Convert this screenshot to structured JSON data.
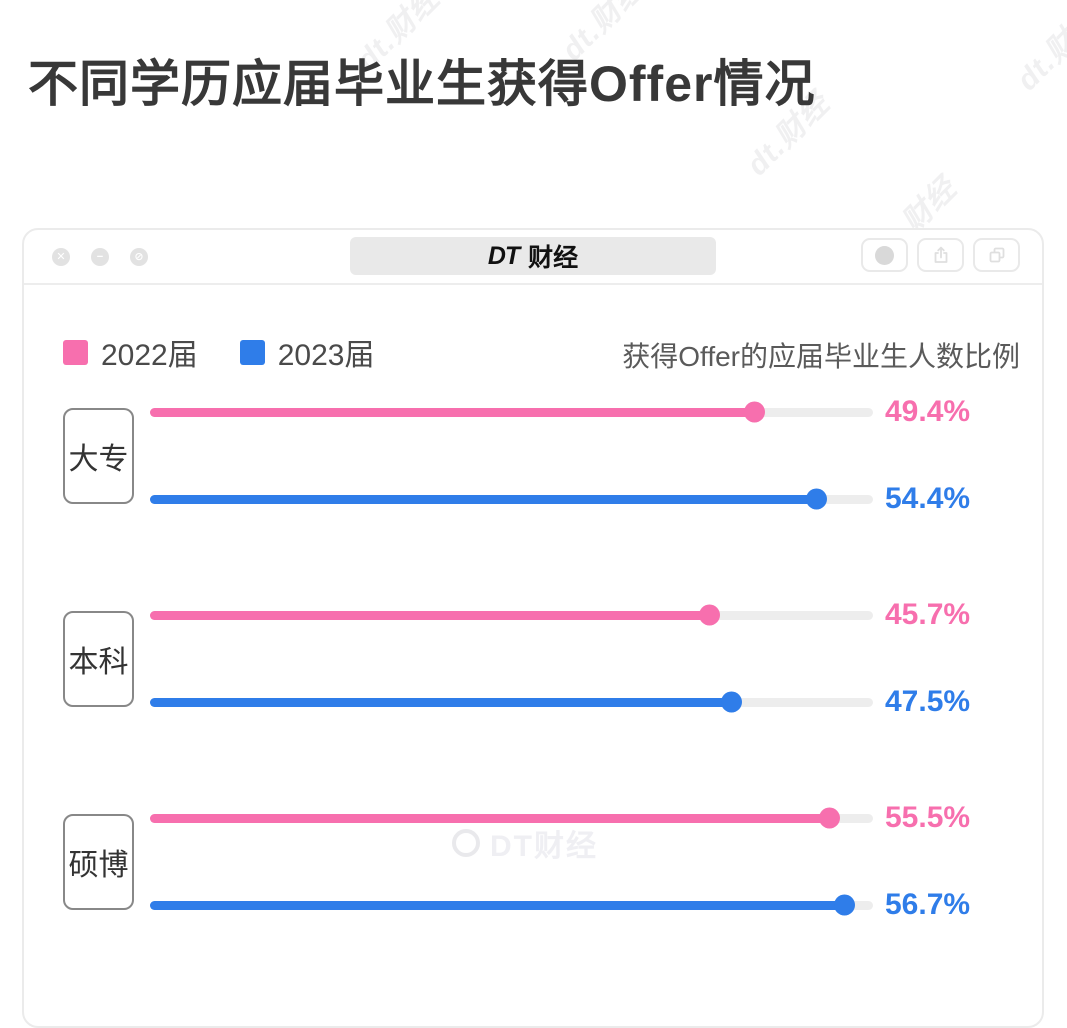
{
  "page": {
    "title": "不同学历应届毕业生获得Offer情况"
  },
  "window": {
    "badge_dt": "DT",
    "badge_name": "财经",
    "traffic_lights": {
      "close": "✕",
      "minimize": "−",
      "disable": "⊘"
    }
  },
  "watermark": {
    "diagonal_text": "dt.财经",
    "footer_text": "DT财经"
  },
  "chart_data": {
    "type": "bar",
    "orientation": "horizontal",
    "title": "不同学历应届毕业生获得Offer情况",
    "caption": "获得Offer的应届毕业生人数比例",
    "categories": [
      "大专",
      "本科",
      "硕博"
    ],
    "series": [
      {
        "name": "2022届",
        "color": "#f76fae",
        "values": [
          49.4,
          45.7,
          55.5
        ]
      },
      {
        "name": "2023届",
        "color": "#2f7de9",
        "values": [
          54.4,
          47.5,
          56.7
        ]
      }
    ],
    "unit": "%",
    "xlim": [
      0,
      59
    ],
    "value_labels": true,
    "legend_position": "top-left",
    "grid": false
  }
}
